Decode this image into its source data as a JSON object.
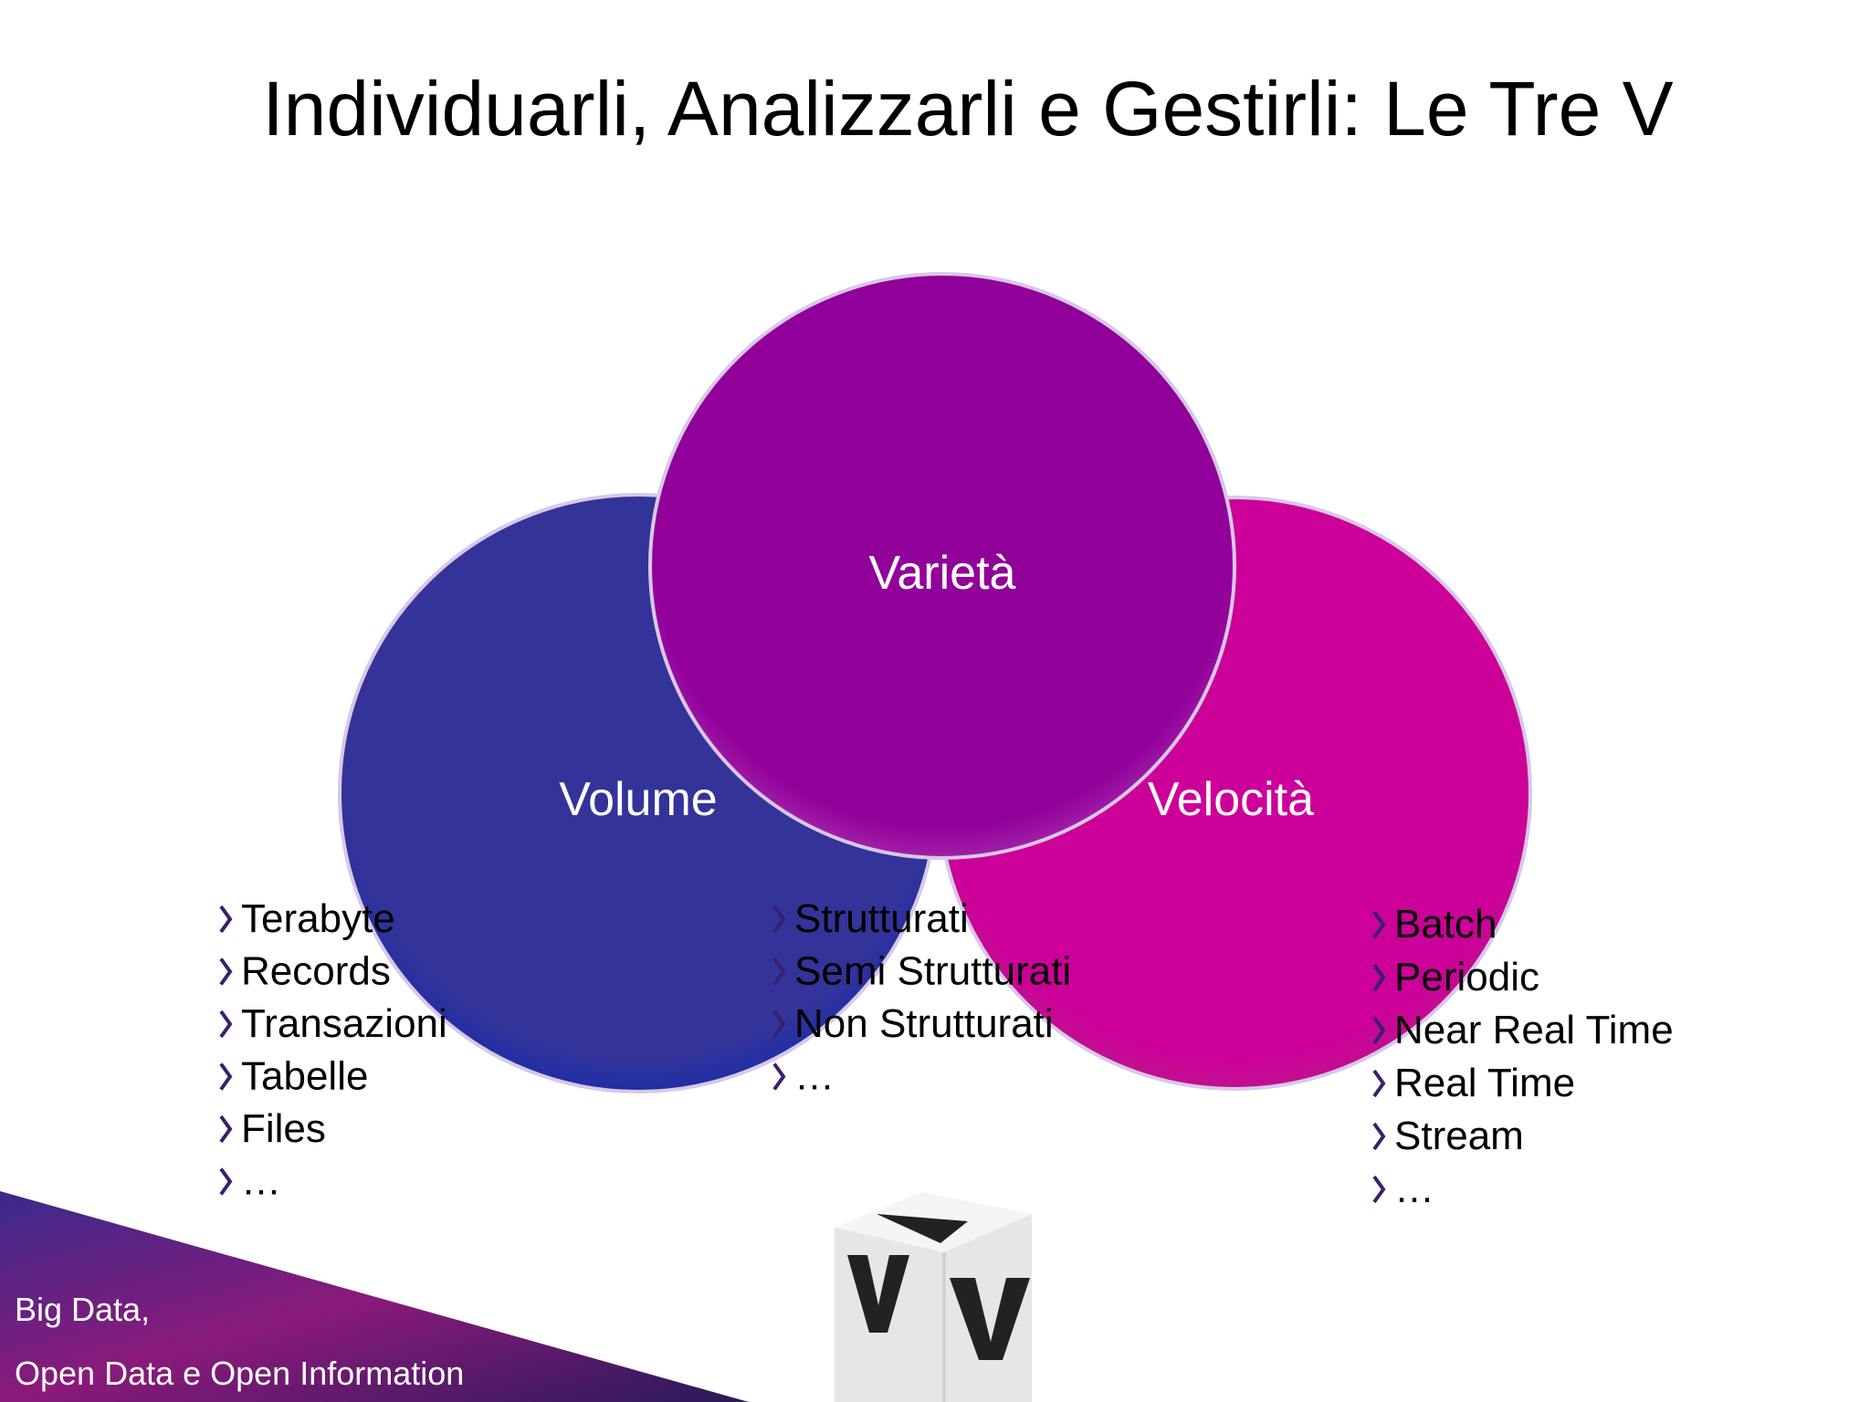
{
  "title": "Individuarli, Analizzarli e Gestirli: Le Tre V",
  "circles": [
    {
      "label": "Volume",
      "items": [
        "Terabyte",
        "Records",
        "Transazioni",
        "Tabelle",
        "Files",
        "…"
      ]
    },
    {
      "label": "Varietà",
      "items": [
        "Strutturati",
        "Semi Strutturati",
        "Non Strutturati",
        "…"
      ]
    },
    {
      "label": "Velocità",
      "items": [
        "Batch",
        "Periodic",
        "Near Real Time",
        "Real Time",
        "Stream",
        "…"
      ]
    }
  ],
  "footer": [
    "Big Data,",
    "Open Data  e Open Information"
  ]
}
